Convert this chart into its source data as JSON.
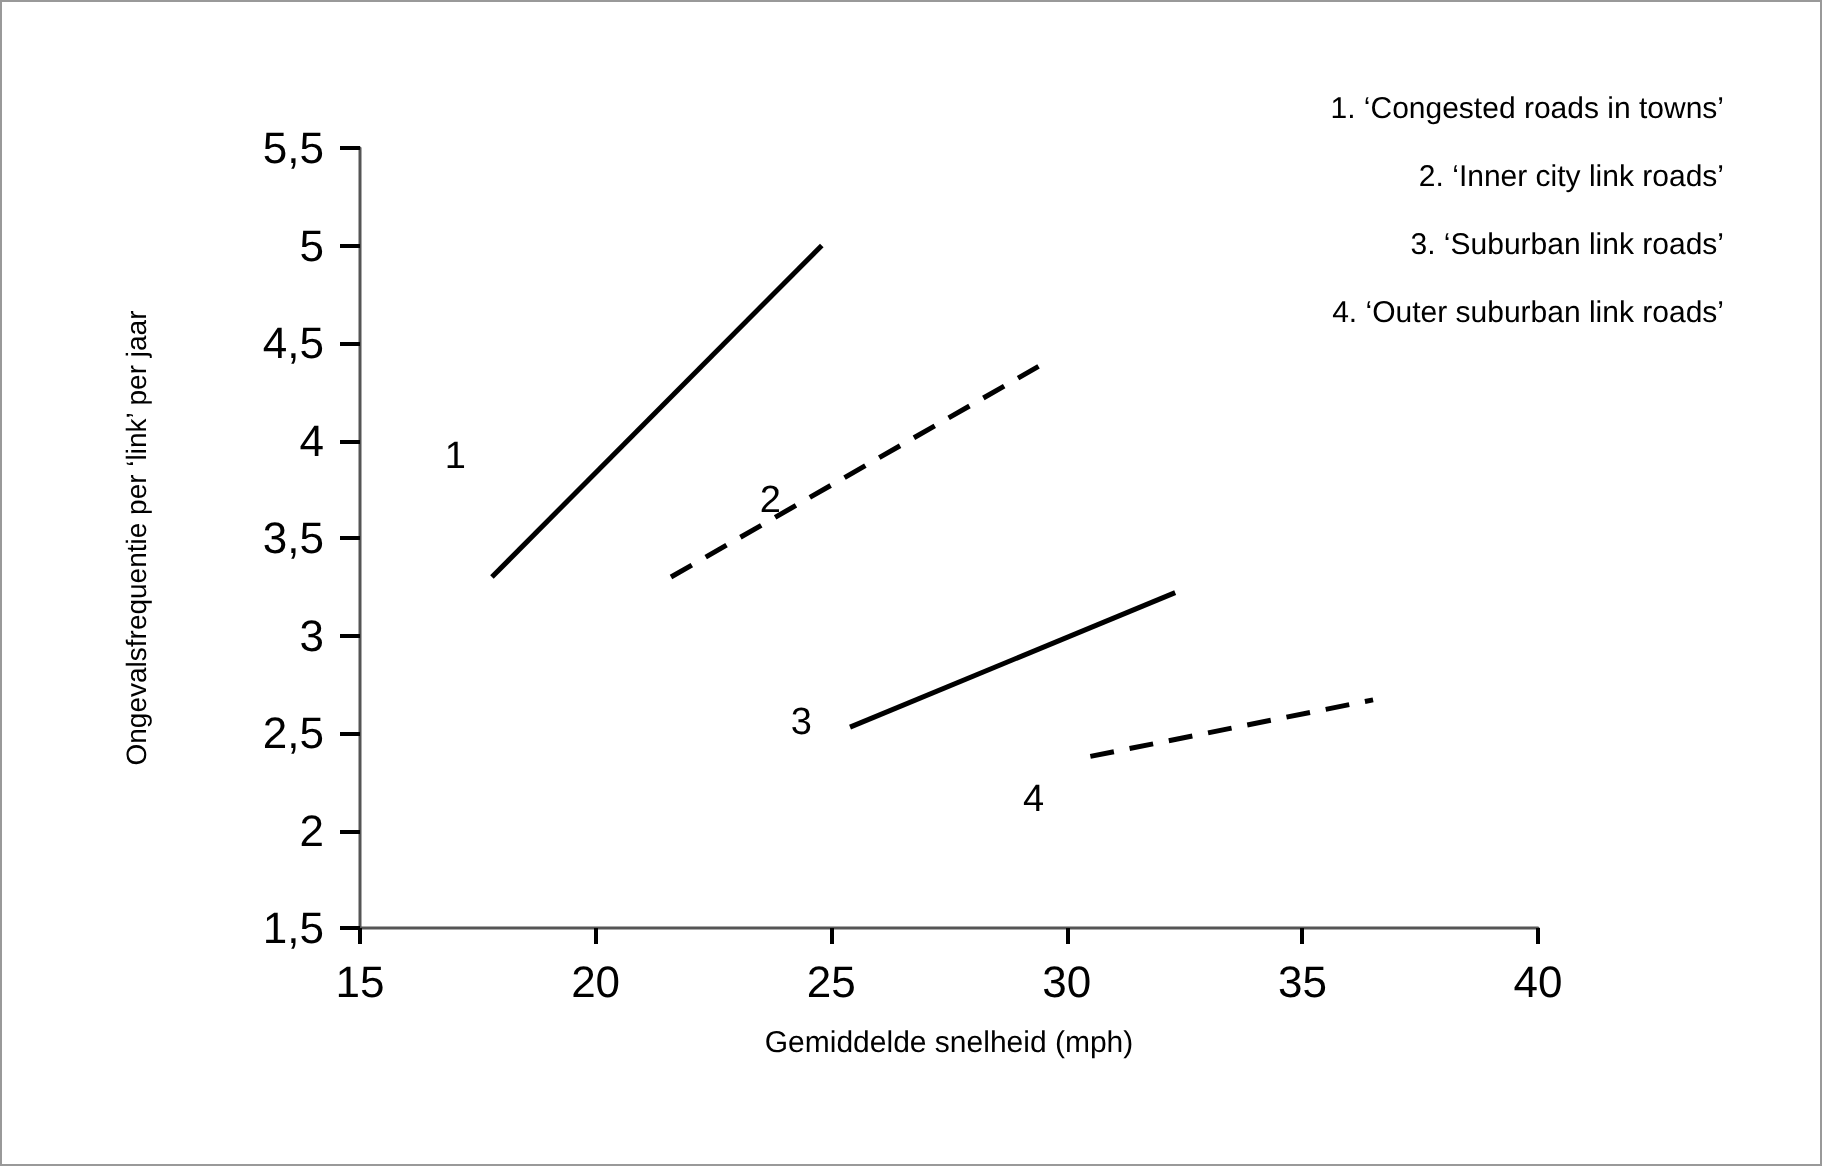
{
  "chart_data": {
    "type": "line",
    "xlabel": "Gemiddelde snelheid (mph)",
    "ylabel": "Ongevalsfrequentie per ‘link’ per jaar",
    "xlim": [
      15,
      40
    ],
    "xticks": [
      15,
      20,
      25,
      30,
      35,
      40
    ],
    "ylim": [
      1.5,
      5.5
    ],
    "yticks": [
      {
        "value": 1.5,
        "label": "1,5"
      },
      2,
      {
        "value": 2.5,
        "label": "2,5"
      },
      3,
      {
        "value": 3.5,
        "label": "3,5"
      },
      4,
      {
        "value": 4.5,
        "label": "4,5"
      },
      5,
      {
        "value": 5.5,
        "label": "5,5"
      }
    ],
    "grid": false,
    "marker": "none",
    "series": [
      {
        "name": "1",
        "color": "#000000",
        "line_style": "solid",
        "x": [
          17.8,
          24.8
        ],
        "values": [
          3.3,
          5.0
        ]
      },
      {
        "name": "2",
        "color": "#000000",
        "line_style": "dashed",
        "x": [
          21.6,
          29.4
        ],
        "values": [
          3.3,
          4.38
        ]
      },
      {
        "name": "3",
        "color": "#000000",
        "line_style": "solid",
        "x": [
          25.4,
          32.3
        ],
        "values": [
          2.53,
          3.22
        ]
      },
      {
        "name": "4",
        "color": "#000000",
        "line_style": "dashed",
        "x": [
          30.5,
          36.5
        ],
        "values": [
          2.38,
          2.67
        ]
      }
    ],
    "annotations": [
      "1. ‘Congested roads in towns’",
      "2. ‘Inner city link roads’",
      "3. ‘Suburban link roads’",
      "4. ‘Outer suburban link roads’"
    ]
  }
}
